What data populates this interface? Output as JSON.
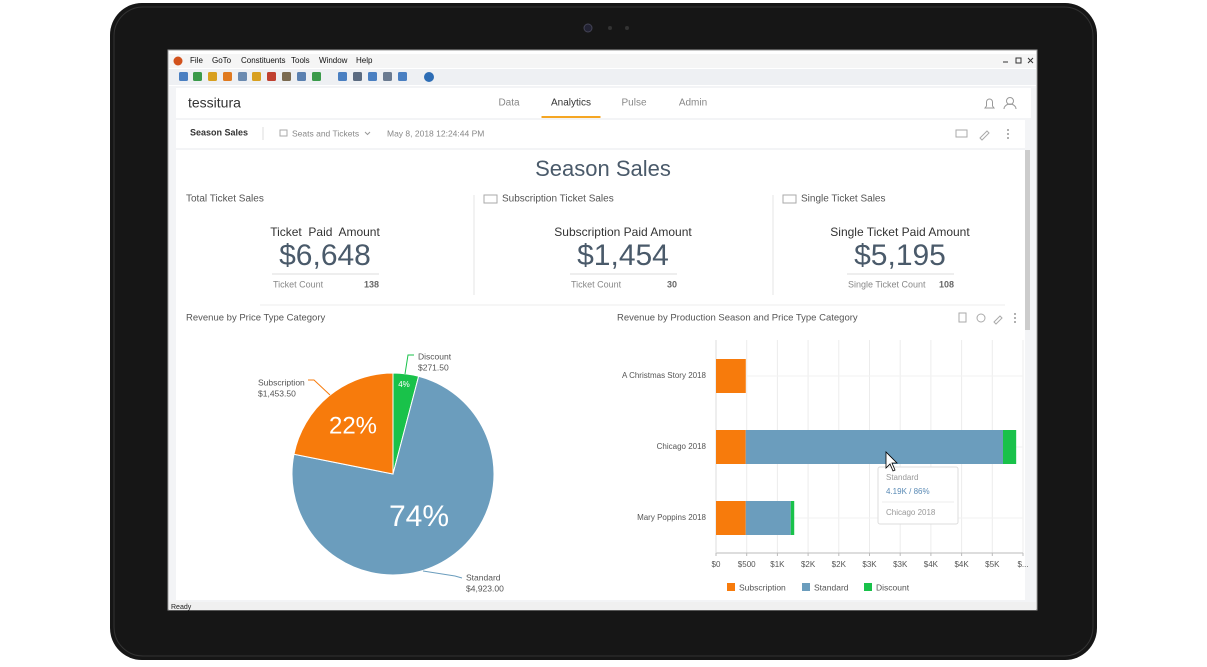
{
  "window": {
    "menu": [
      "File",
      "GoTo",
      "Constituents",
      "Tools",
      "Window",
      "Help"
    ],
    "status": "Ready"
  },
  "app": {
    "logo": "tessitura",
    "tabs": [
      "Data",
      "Analytics",
      "Pulse",
      "Admin"
    ],
    "active_tab": 1
  },
  "subheader": {
    "title": "Season Sales",
    "view": "Seats and Tickets",
    "timestamp": "May 8, 2018 12:24:44 PM"
  },
  "dashboard": {
    "title": "Season Sales",
    "kpis": [
      {
        "panel": "Total Ticket Sales",
        "label": "Ticket  Paid  Amount",
        "value": "$6,648",
        "count_label": "Ticket Count",
        "count": 138
      },
      {
        "panel": "Subscription Ticket Sales",
        "label": "Subscription Paid Amount",
        "value": "$1,454",
        "count_label": "Ticket Count",
        "count": 30
      },
      {
        "panel": "Single Ticket Sales",
        "label": "Single Ticket Paid Amount",
        "value": "$5,195",
        "count_label": "Single Ticket Count",
        "count": 108
      }
    ]
  },
  "chart_data": [
    {
      "type": "pie",
      "title": "Revenue by Price Type Category",
      "categories": [
        "Discount",
        "Standard",
        "Subscription"
      ],
      "values": [
        271.5,
        4923,
        1453.5
      ],
      "value_labels": [
        "$271.50",
        "$4,923.00",
        "$1,453.50"
      ],
      "percent_labels": [
        "4%",
        "74%",
        "22%"
      ],
      "colors": [
        "#19c24a",
        "#6b9dbd",
        "#f77b0c"
      ]
    },
    {
      "type": "bar",
      "orientation": "horizontal",
      "stacked": true,
      "title": "Revenue by Production Season and Price Type Category",
      "categories": [
        "A Christmas Story 2018",
        "Chicago 2018",
        "Mary Poppins 2018"
      ],
      "series": [
        {
          "name": "Subscription",
          "color": "#f77b0c",
          "values": [
            485,
            484,
            484.5
          ]
        },
        {
          "name": "Standard",
          "color": "#6b9dbd",
          "values": [
            0,
            4190,
            733
          ]
        },
        {
          "name": "Discount",
          "color": "#19c24a",
          "values": [
            0,
            215,
            56.5
          ]
        }
      ],
      "xlim": [
        0,
        5000
      ],
      "xticks": [
        {
          "value": 0,
          "label": "$0"
        },
        {
          "value": 500,
          "label": "$500"
        },
        {
          "value": 1000,
          "label": "$1K"
        },
        {
          "value": 1500,
          "label": "$2K"
        },
        {
          "value": 2000,
          "label": "$2K"
        },
        {
          "value": 2500,
          "label": "$3K"
        },
        {
          "value": 3000,
          "label": "$3K"
        },
        {
          "value": 3500,
          "label": "$4K"
        },
        {
          "value": 4000,
          "label": "$4K"
        },
        {
          "value": 4500,
          "label": "$5K"
        },
        {
          "value": 5000,
          "label": "$..."
        }
      ],
      "grid": true,
      "legend": "bottom",
      "tooltip": {
        "series": "Standard",
        "value": "4.19K / 86%",
        "category": "Chicago 2018"
      }
    }
  ]
}
